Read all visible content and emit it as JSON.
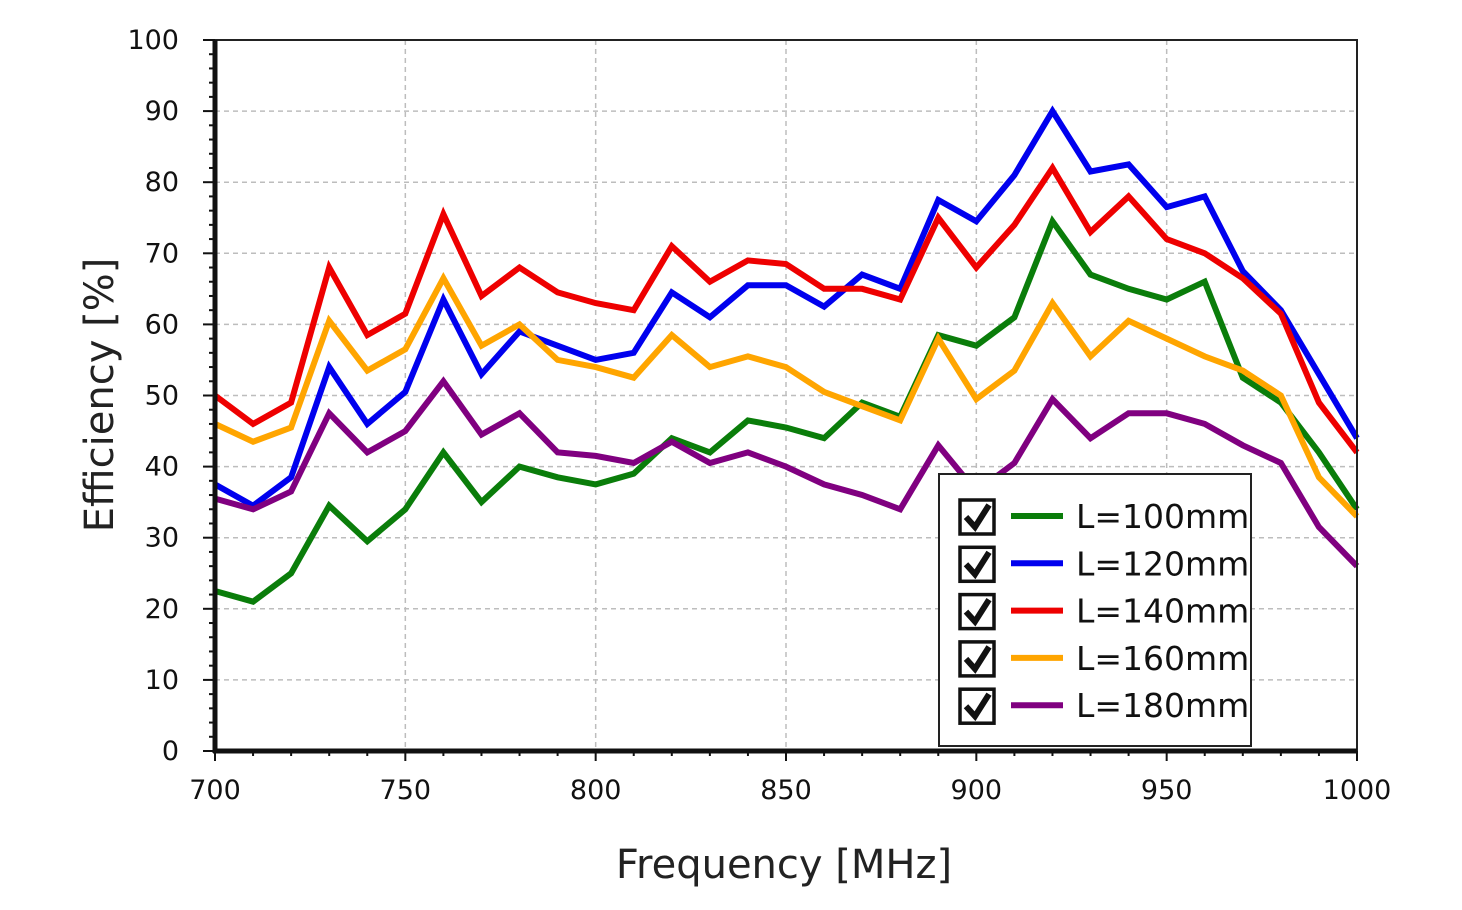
{
  "chart_data": {
    "type": "line",
    "xlabel": "Frequency [MHz]",
    "ylabel": "Efficiency [%]",
    "xlim": [
      700,
      1000
    ],
    "ylim": [
      0,
      100
    ],
    "xticks": [
      700,
      750,
      800,
      850,
      900,
      950,
      1000
    ],
    "yticks": [
      0,
      10,
      20,
      30,
      40,
      50,
      60,
      70,
      80,
      90,
      100
    ],
    "grid": true,
    "legend_position": "bottom-right",
    "x": [
      700,
      710,
      720,
      730,
      740,
      750,
      760,
      770,
      780,
      790,
      800,
      810,
      820,
      830,
      840,
      850,
      860,
      870,
      880,
      890,
      900,
      910,
      920,
      930,
      940,
      950,
      960,
      970,
      980,
      990,
      1000
    ],
    "series": [
      {
        "name": "L=100mm",
        "color": "#0a7d0a",
        "checked": true,
        "values": [
          22.5,
          21,
          25,
          34.5,
          29.5,
          34,
          42,
          35,
          40,
          38.5,
          37.5,
          39,
          44,
          42,
          46.5,
          45.5,
          44,
          49,
          47,
          58.5,
          57,
          61,
          74.5,
          67,
          65,
          63.5,
          66,
          52.5,
          49,
          42,
          34
        ]
      },
      {
        "name": "L=120mm",
        "color": "#0000ee",
        "checked": true,
        "values": [
          37.5,
          34.5,
          38.5,
          54,
          46,
          50.5,
          63.5,
          53,
          59,
          57,
          55,
          56,
          64.5,
          61,
          65.5,
          65.5,
          62.5,
          67,
          65,
          77.5,
          74.5,
          81,
          90,
          81.5,
          82.5,
          76.5,
          78,
          67.5,
          62,
          53,
          44
        ]
      },
      {
        "name": "L=140mm",
        "color": "#ee0000",
        "checked": true,
        "values": [
          50,
          46,
          49,
          68,
          58.5,
          61.5,
          75.5,
          64,
          68,
          64.5,
          63,
          62,
          71,
          66,
          69,
          68.5,
          65,
          65,
          63.5,
          75,
          68,
          74,
          82,
          73,
          78,
          72,
          70,
          66.5,
          61.5,
          49,
          42
        ]
      },
      {
        "name": "L=160mm",
        "color": "#ffa500",
        "checked": true,
        "values": [
          46,
          43.5,
          45.5,
          60.5,
          53.5,
          56.5,
          66.5,
          57,
          60,
          55,
          54,
          52.5,
          58.5,
          54,
          55.5,
          54,
          50.5,
          48.5,
          46.5,
          58,
          49.5,
          53.5,
          63,
          55.5,
          60.5,
          58,
          55.5,
          53.5,
          50,
          38.5,
          33
        ]
      },
      {
        "name": "L=180mm",
        "color": "#800080",
        "checked": true,
        "values": [
          35.5,
          34,
          36.5,
          47.5,
          42,
          45,
          52,
          44.5,
          47.5,
          42,
          41.5,
          40.5,
          43.5,
          40.5,
          42,
          40,
          37.5,
          36,
          34,
          43,
          36.5,
          40.5,
          49.5,
          44,
          47.5,
          47.5,
          46,
          43,
          40.5,
          31.5,
          26
        ]
      }
    ]
  }
}
